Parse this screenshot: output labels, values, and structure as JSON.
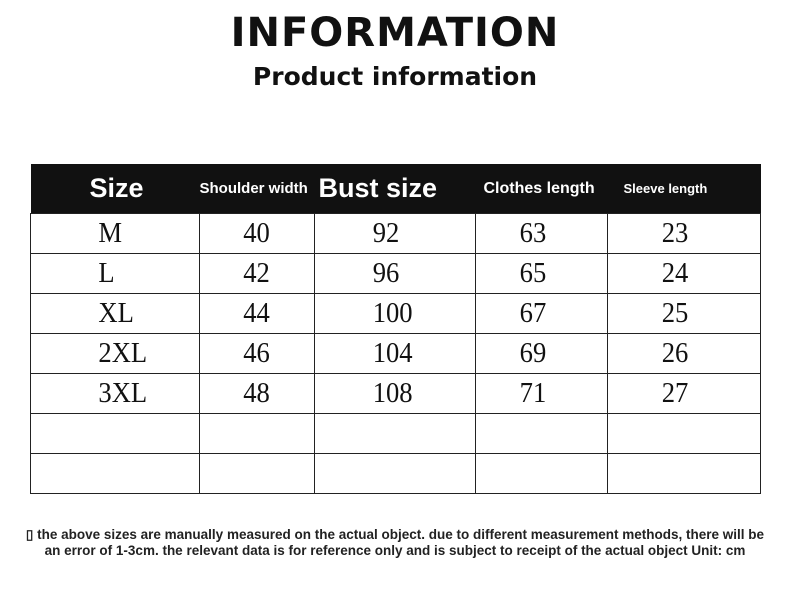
{
  "title": "INFORMATION",
  "subtitle": "Product information",
  "table": {
    "headers": [
      "Size",
      "Shoulder width",
      "Bust size",
      "Clothes length",
      "Sleeve length"
    ],
    "rows": [
      [
        "M",
        "40",
        "92",
        "63",
        "23"
      ],
      [
        "L",
        "42",
        "96",
        "65",
        "24"
      ],
      [
        "XL",
        "44",
        "100",
        "67",
        "25"
      ],
      [
        "2XL",
        "46",
        "104",
        "69",
        "26"
      ],
      [
        "3XL",
        "48",
        "108",
        "71",
        "27"
      ],
      [
        "",
        "",
        "",
        "",
        ""
      ],
      [
        "",
        "",
        "",
        "",
        ""
      ]
    ]
  },
  "note": "▯ the above sizes are manually measured on the actual object. due to different measurement methods, there will be an error of 1-3cm. the relevant data is for reference only and is subject to receipt of the actual object Unit: cm"
}
